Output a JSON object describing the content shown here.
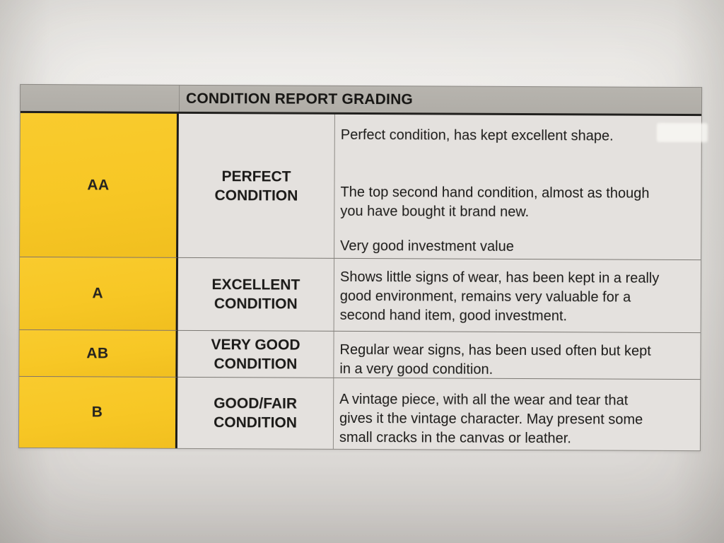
{
  "table": {
    "title": "CONDITION REPORT GRADING",
    "rows": [
      {
        "grade": "AA",
        "condition": "PERFECT CONDITION",
        "paragraphs": [
          "Perfect condition, has kept excellent shape.",
          "The top second hand condition, almost as though\nyou have bought it brand new.",
          "Very good investment value"
        ]
      },
      {
        "grade": "A",
        "condition": "EXCELLENT CONDITION",
        "paragraphs": [
          "Shows little signs of wear, has been kept in a really\ngood environment, remains very valuable for a\nsecond hand item, good investment."
        ]
      },
      {
        "grade": "AB",
        "condition": "VERY GOOD CONDITION",
        "paragraphs": [
          "Regular wear signs, has been used often but kept\nin a very good condition."
        ]
      },
      {
        "grade": "B",
        "condition": "GOOD/FAIR CONDITION",
        "paragraphs": [
          "A vintage piece, with all the wear and tear that\ngives it the vintage character. May present some\nsmall cracks in the canvas or leather."
        ]
      }
    ],
    "colors": {
      "grade_column": "#f8c928",
      "header_bg": "#b3b0aa",
      "cell_bg": "#e4e1de",
      "text": "#1a1a18"
    }
  }
}
